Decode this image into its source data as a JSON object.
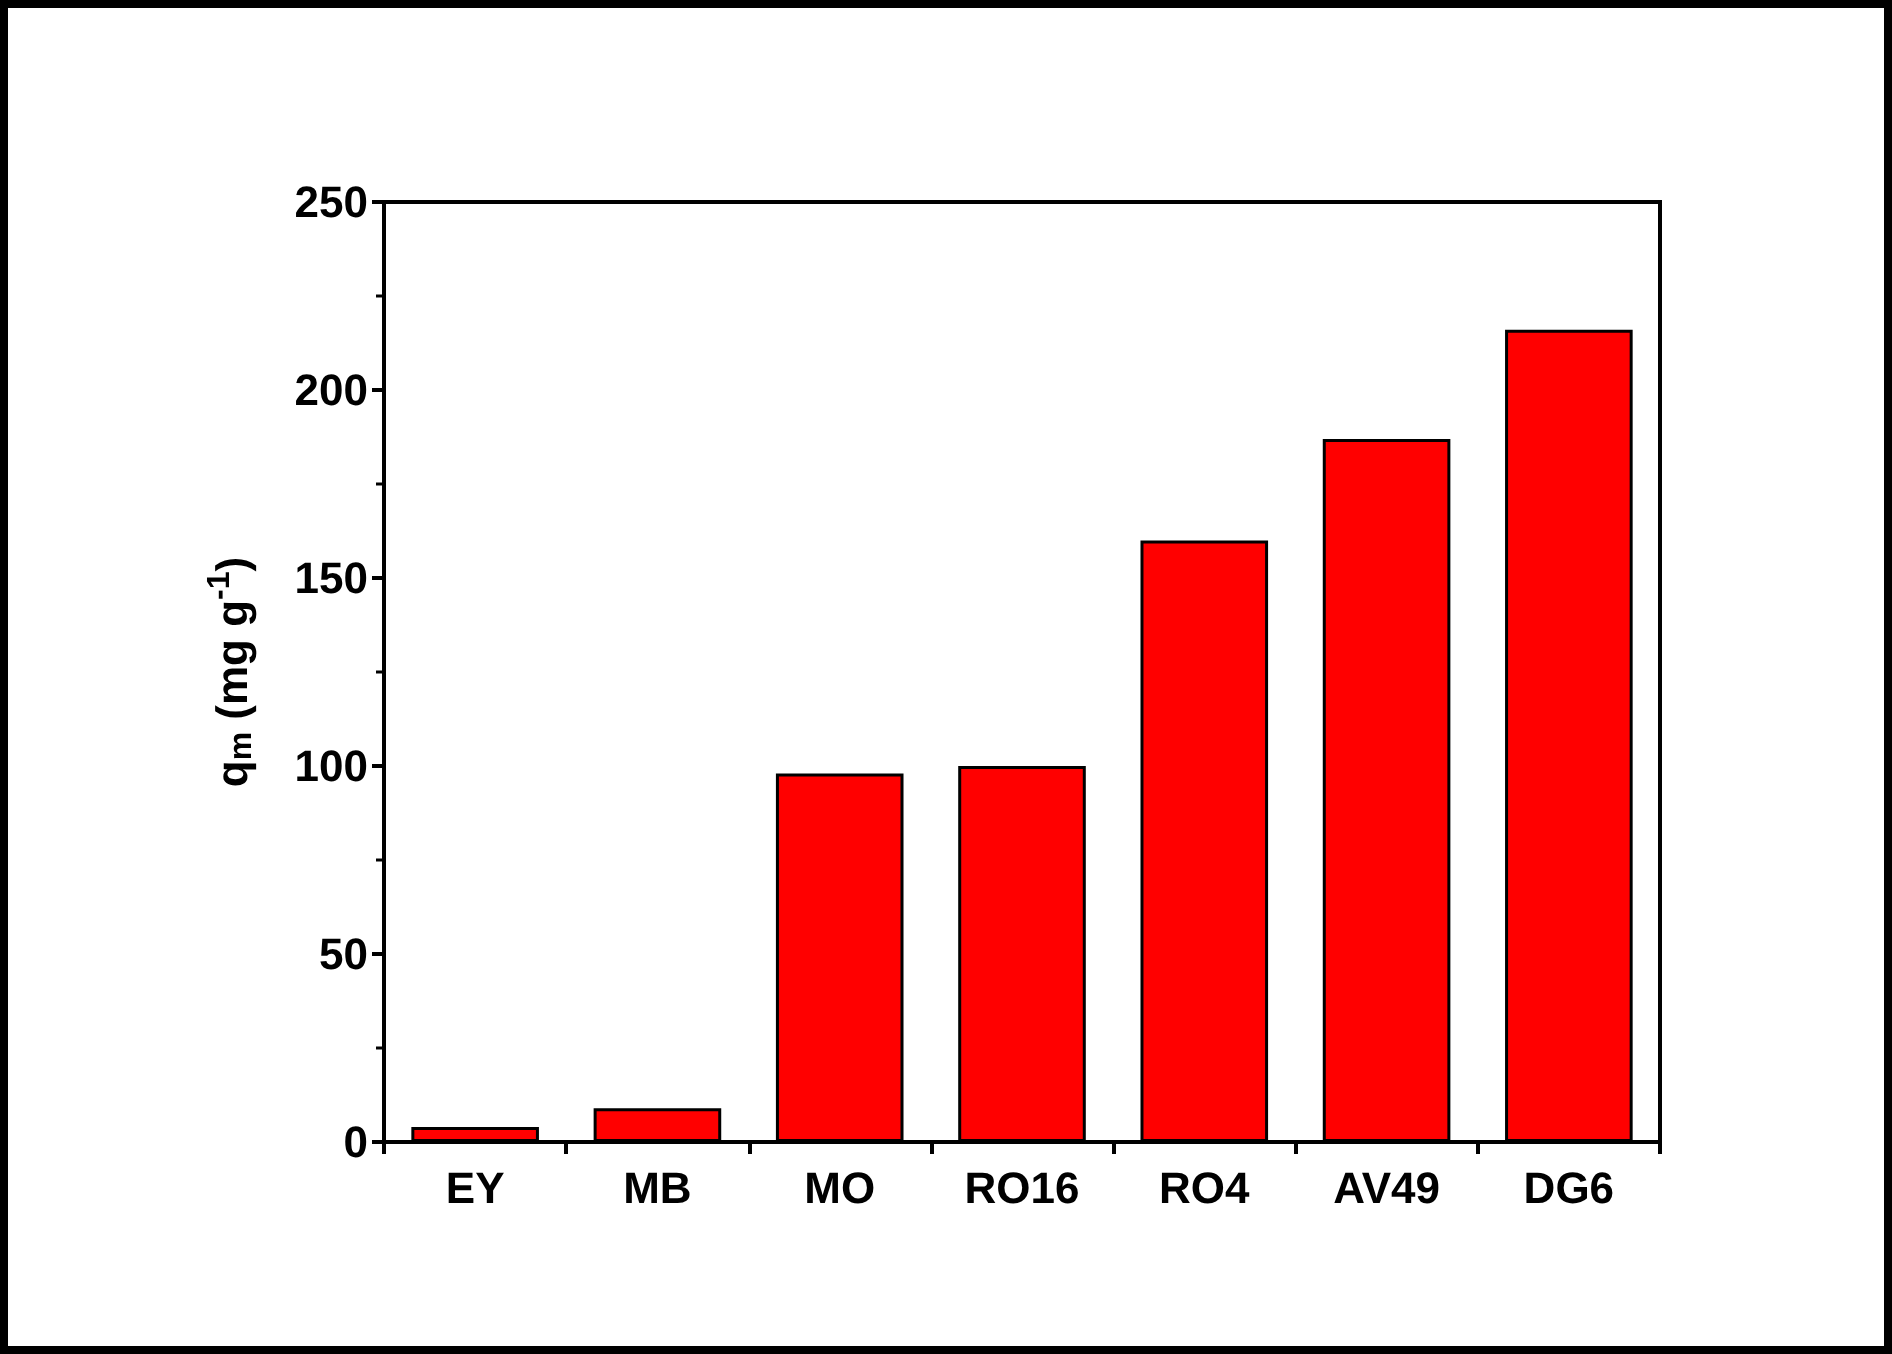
{
  "chart_data": {
    "type": "bar",
    "ylabel": "q$_{m}$ (mg g$^{-1}$)",
    "categories": [
      "EY",
      "MB",
      "MO",
      "RO16",
      "RO4",
      "AV49",
      "DG6"
    ],
    "values": [
      4,
      9,
      98,
      100,
      160,
      187,
      216
    ],
    "color": "#ff0000",
    "ylim": [
      0,
      250
    ],
    "yticks": [
      0,
      50,
      100,
      150,
      200,
      250
    ],
    "grid": false
  }
}
